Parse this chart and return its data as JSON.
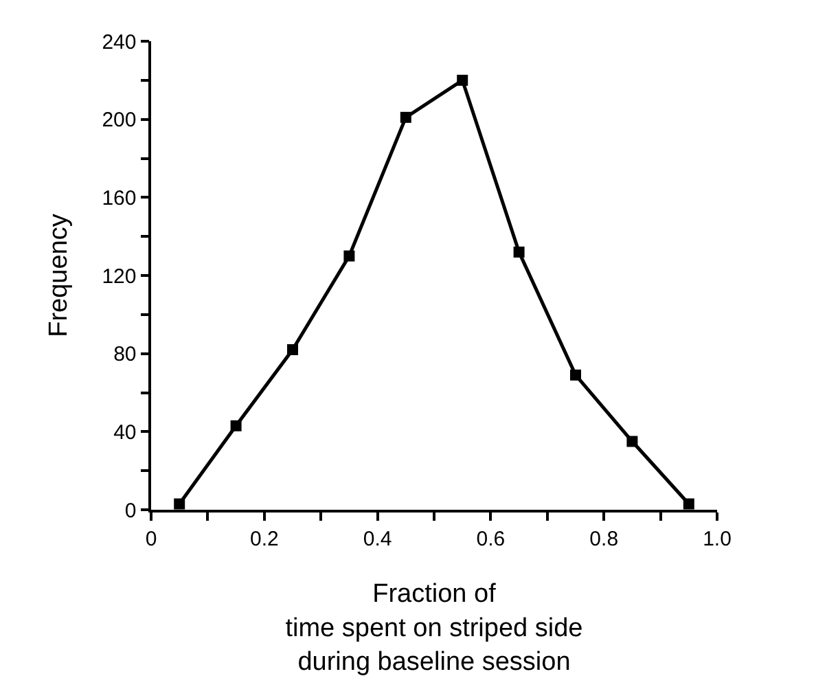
{
  "chart_data": {
    "type": "line",
    "xlabel": "Fraction of\ntime spent on striped side\nduring baseline session",
    "ylabel": "Frequency",
    "x": [
      0.05,
      0.15,
      0.25,
      0.35,
      0.45,
      0.55,
      0.65,
      0.75,
      0.85,
      0.95
    ],
    "series": [
      {
        "color": "#000000",
        "values": [
          3,
          43,
          82,
          130,
          201,
          220,
          132,
          69,
          35,
          3
        ]
      }
    ],
    "xlim": [
      0,
      1.0
    ],
    "xticks": [
      0,
      {
        "value": 0.1,
        "label": null
      },
      0.2,
      {
        "value": 0.3,
        "label": null
      },
      0.4,
      {
        "value": 0.5,
        "label": null
      },
      0.6,
      {
        "value": 0.7,
        "label": null
      },
      0.8,
      {
        "value": 0.9,
        "label": null
      },
      {
        "value": 1.0,
        "label": "1.0"
      }
    ],
    "ylim": [
      0,
      240
    ],
    "yticks": [
      0,
      {
        "value": 20,
        "label": null
      },
      40,
      {
        "value": 60,
        "label": null
      },
      80,
      {
        "value": 100,
        "label": null
      },
      120,
      {
        "value": 140,
        "label": null
      },
      160,
      {
        "value": 180,
        "label": null
      },
      200,
      {
        "value": 220,
        "label": null
      },
      240
    ],
    "legend": false,
    "marker": "square",
    "line_style": "solid"
  }
}
